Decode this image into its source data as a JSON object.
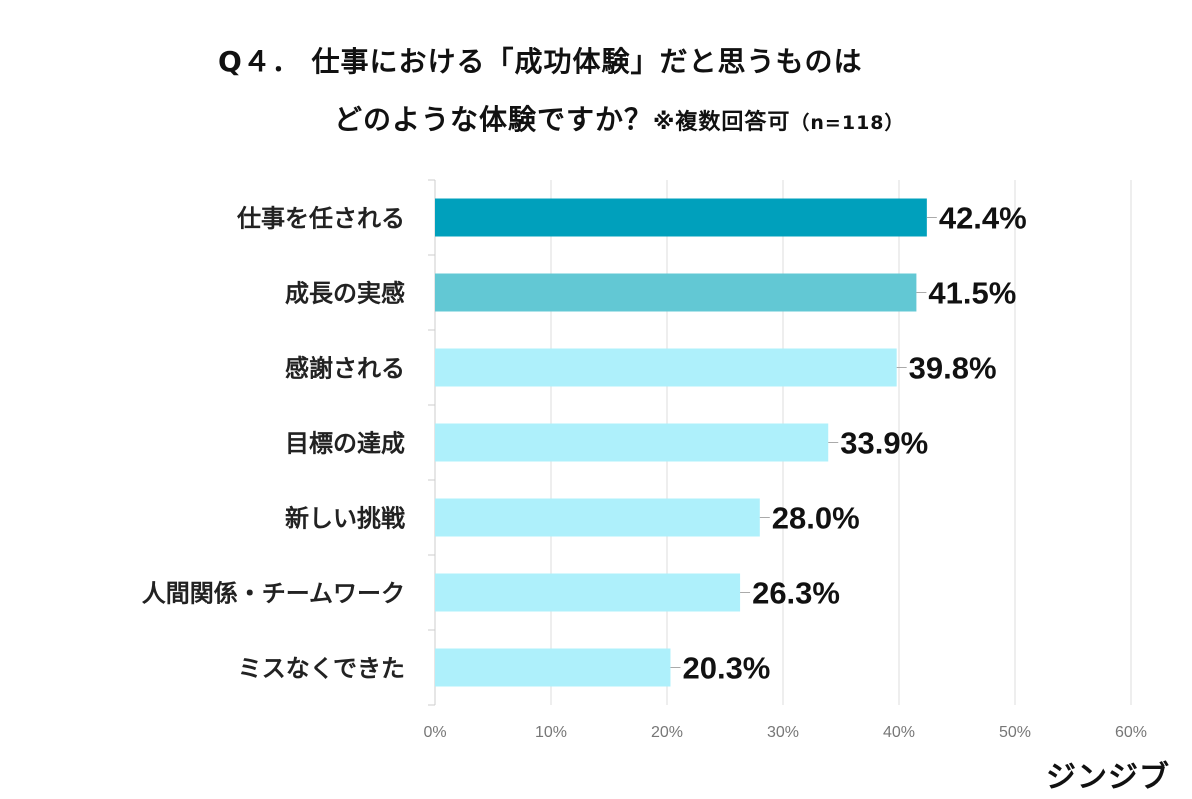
{
  "title_line1": "Q４． 仕事における「成功体験」だと思うものは",
  "title_line2": "どのような体験ですか？",
  "title_note": "※複数回答可",
  "title_n": "（n=118）",
  "logo_text": "ジンジブ",
  "chart_data": {
    "type": "bar",
    "orientation": "horizontal",
    "categories": [
      "仕事を任される",
      "成長の実感",
      "感謝される",
      "目標の達成",
      "新しい挑戦",
      "人間関係・チームワーク",
      "ミスなくできた"
    ],
    "values": [
      42.4,
      41.5,
      39.8,
      33.9,
      28.0,
      26.3,
      20.3
    ],
    "data_labels": [
      "42.4%",
      "41.5%",
      "39.8%",
      "33.9%",
      "28.0%",
      "26.3%",
      "20.3%"
    ],
    "bar_colors": [
      "#00a0bc",
      "#62c8d4",
      "#aef0fb",
      "#aef0fb",
      "#aef0fb",
      "#aef0fb",
      "#aef0fb"
    ],
    "x_ticks": [
      "0%",
      "10%",
      "20%",
      "30%",
      "40%",
      "50%",
      "60%"
    ],
    "xlim": [
      0,
      60
    ],
    "grid": true,
    "xlabel": "",
    "ylabel": ""
  }
}
